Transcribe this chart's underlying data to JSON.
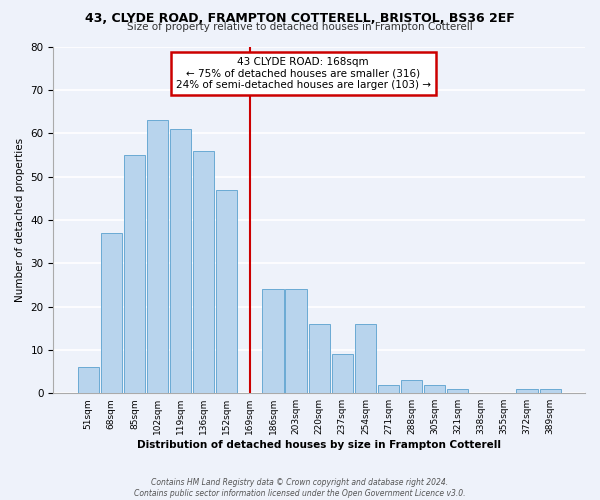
{
  "title": "43, CLYDE ROAD, FRAMPTON COTTERELL, BRISTOL, BS36 2EF",
  "subtitle": "Size of property relative to detached houses in Frampton Cotterell",
  "xlabel": "Distribution of detached houses by size in Frampton Cotterell",
  "ylabel": "Number of detached properties",
  "bar_labels": [
    "51sqm",
    "68sqm",
    "85sqm",
    "102sqm",
    "119sqm",
    "136sqm",
    "152sqm",
    "169sqm",
    "186sqm",
    "203sqm",
    "220sqm",
    "237sqm",
    "254sqm",
    "271sqm",
    "288sqm",
    "305sqm",
    "321sqm",
    "338sqm",
    "355sqm",
    "372sqm",
    "389sqm"
  ],
  "bar_values": [
    6,
    37,
    55,
    63,
    61,
    56,
    47,
    0,
    24,
    24,
    16,
    9,
    16,
    2,
    3,
    2,
    1,
    0,
    0,
    1,
    1
  ],
  "bar_color": "#b8d4ed",
  "bar_edge_color": "#6aaad4",
  "vline_color": "#cc0000",
  "ylim": [
    0,
    80
  ],
  "yticks": [
    0,
    10,
    20,
    30,
    40,
    50,
    60,
    70,
    80
  ],
  "annotation_title": "43 CLYDE ROAD: 168sqm",
  "annotation_line1": "← 75% of detached houses are smaller (316)",
  "annotation_line2": "24% of semi-detached houses are larger (103) →",
  "annotation_box_color": "#ffffff",
  "annotation_box_edge": "#cc0000",
  "background_color": "#eef2fa",
  "grid_color": "#ffffff",
  "footer1": "Contains HM Land Registry data © Crown copyright and database right 2024.",
  "footer2": "Contains public sector information licensed under the Open Government Licence v3.0."
}
